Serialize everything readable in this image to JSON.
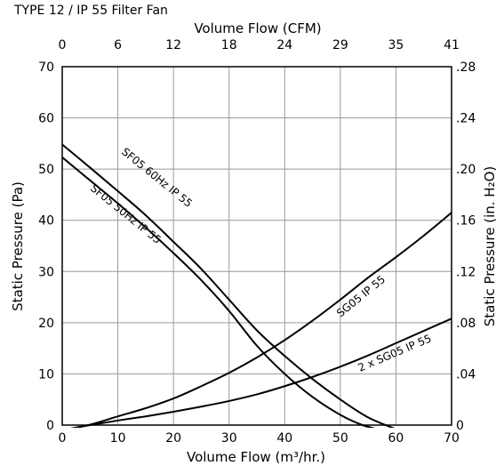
{
  "chart_data": {
    "type": "line",
    "title": "TYPE 12 / IP 55 Filter Fan",
    "xlabel_bottom": "Volume Flow (m³/hr.)",
    "xlabel_top": "Volume Flow (CFM)",
    "ylabel_left": "Static Pressure (Pa)",
    "ylabel_right": "Static Pressure (in. H₂O)",
    "xlim": [
      0,
      70
    ],
    "ylim": [
      0,
      70
    ],
    "x_ticks": [
      "0",
      "10",
      "20",
      "30",
      "40",
      "50",
      "60",
      "70"
    ],
    "y_ticks": [
      "0",
      "10",
      "20",
      "30",
      "40",
      "50",
      "60",
      "70"
    ],
    "x_top_ticks": [
      "0",
      "6",
      "12",
      "18",
      "24",
      "29",
      "35",
      "41"
    ],
    "y_right_ticks": [
      "0",
      ".04",
      ".08",
      ".12",
      ".16",
      ".20",
      ".24",
      ".28"
    ],
    "grid": true,
    "series": [
      {
        "name": "SF05 60Hz IP 55",
        "kind": "fan",
        "points": [
          [
            0,
            54.8
          ],
          [
            5,
            50.3
          ],
          [
            10,
            45.7
          ],
          [
            15,
            41.0
          ],
          [
            20,
            35.8
          ],
          [
            25,
            30.5
          ],
          [
            30,
            24.5
          ],
          [
            35,
            18.5
          ],
          [
            40,
            13.5
          ],
          [
            45,
            9.0
          ],
          [
            50,
            5.0
          ],
          [
            55,
            1.5
          ],
          [
            60.5,
            -1.0
          ]
        ]
      },
      {
        "name": "SF05 50Hz IP 55",
        "kind": "fan",
        "points": [
          [
            0,
            52.3
          ],
          [
            5,
            47.8
          ],
          [
            10,
            43.3
          ],
          [
            15,
            38.6
          ],
          [
            20,
            33.6
          ],
          [
            25,
            28.3
          ],
          [
            30,
            22.3
          ],
          [
            35,
            15.5
          ],
          [
            40,
            10.0
          ],
          [
            45,
            5.5
          ],
          [
            50,
            2.0
          ],
          [
            54,
            0.0
          ],
          [
            57.5,
            -1.0
          ]
        ]
      },
      {
        "name": "SG05 IP 55",
        "kind": "system",
        "points": [
          [
            0,
            -1.0
          ],
          [
            5,
            0.1
          ],
          [
            10,
            1.7
          ],
          [
            15,
            3.3
          ],
          [
            20,
            5.2
          ],
          [
            25,
            7.6
          ],
          [
            30,
            10.2
          ],
          [
            35,
            13.2
          ],
          [
            40,
            16.6
          ],
          [
            45,
            20.4
          ],
          [
            50,
            24.5
          ],
          [
            55,
            28.8
          ],
          [
            60,
            32.8
          ],
          [
            65,
            37.0
          ],
          [
            70,
            41.5
          ]
        ]
      },
      {
        "name": "2 x SG05 IP 55",
        "kind": "system",
        "points": [
          [
            0,
            -1.0
          ],
          [
            5,
            0.0
          ],
          [
            10,
            0.9
          ],
          [
            15,
            1.7
          ],
          [
            20,
            2.6
          ],
          [
            25,
            3.6
          ],
          [
            30,
            4.7
          ],
          [
            35,
            6.0
          ],
          [
            40,
            7.6
          ],
          [
            45,
            9.4
          ],
          [
            50,
            11.4
          ],
          [
            55,
            13.6
          ],
          [
            60,
            16.0
          ],
          [
            65,
            18.4
          ],
          [
            70,
            20.8
          ]
        ]
      }
    ]
  }
}
